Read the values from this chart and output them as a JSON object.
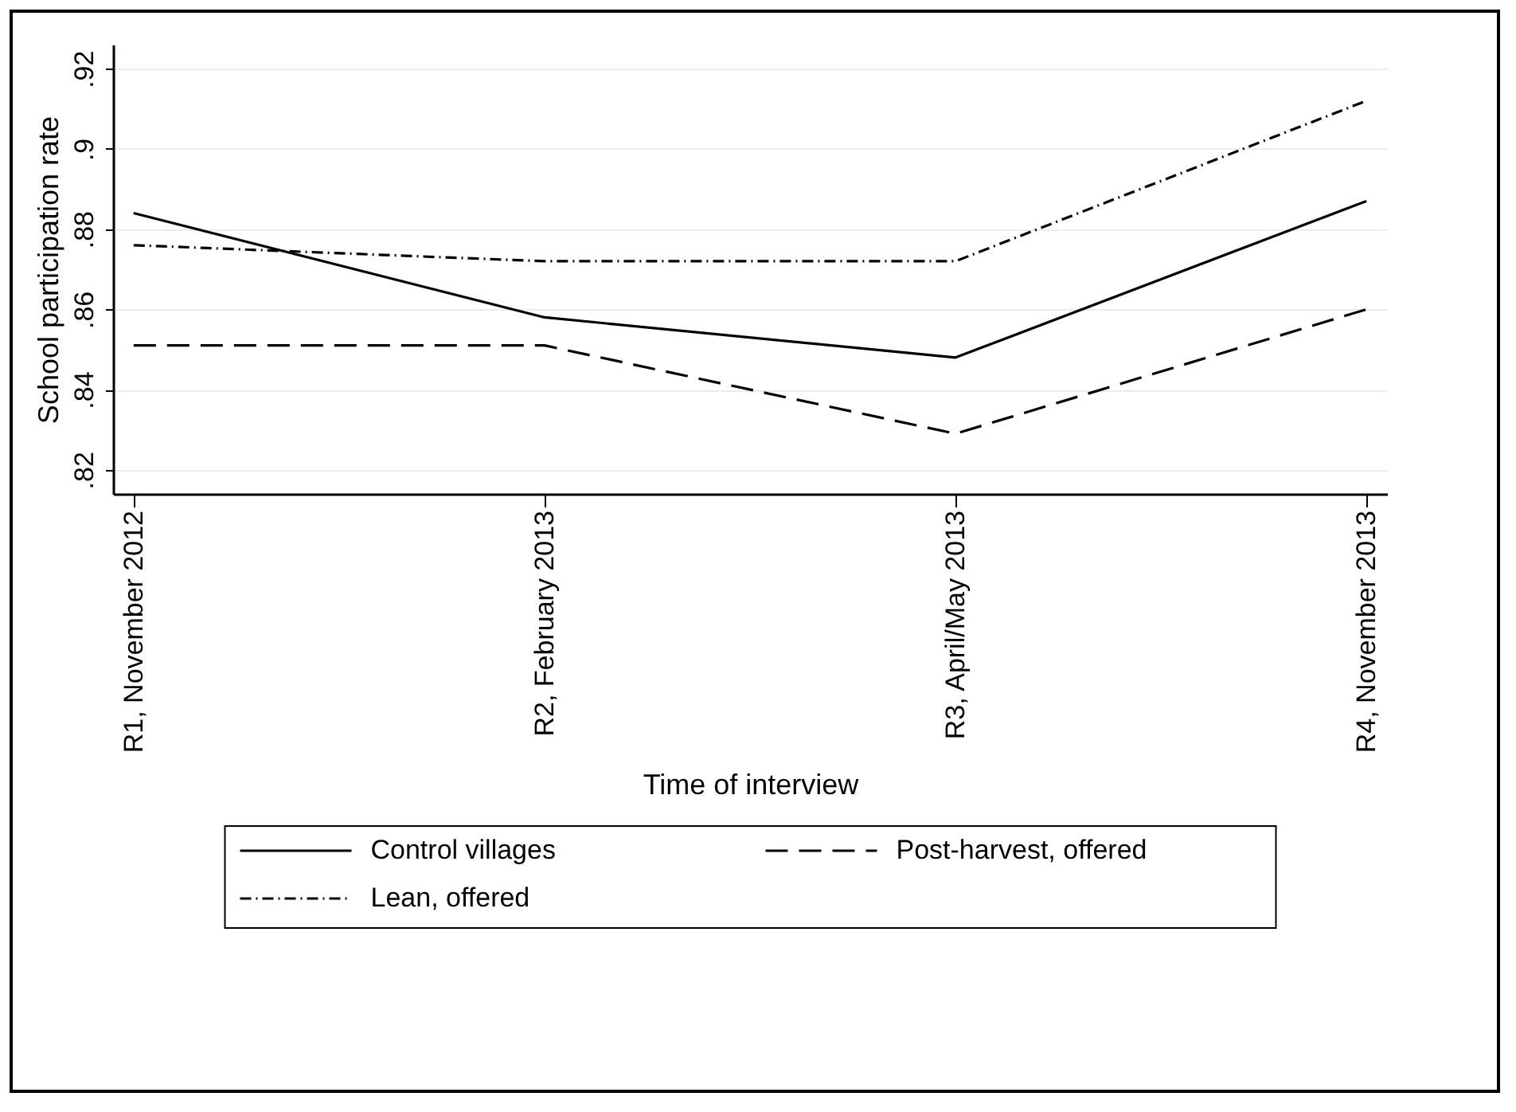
{
  "chart_data": {
    "type": "line",
    "xlabel": "Time of interview",
    "ylabel": "School participation rate",
    "categories": [
      "R1, November 2012",
      "R2, February 2013",
      "R3, April/May 2013",
      "R4, November 2013"
    ],
    "series": [
      {
        "name": "Control villages",
        "color": "#000000",
        "line_style": "solid",
        "values": [
          0.884,
          0.858,
          0.848,
          0.887
        ]
      },
      {
        "name": "Post-harvest, offered",
        "color": "#000000",
        "line_style": "dashed",
        "values": [
          0.851,
          0.851,
          0.829,
          0.86
        ]
      },
      {
        "name": "Lean, offered",
        "color": "#000000",
        "line_style": "dashdot",
        "values": [
          0.876,
          0.872,
          0.872,
          0.912
        ]
      }
    ],
    "ylim": [
      0.814,
      0.926
    ],
    "yticks": [
      {
        "value": 0.82,
        "label": ".82"
      },
      {
        "value": 0.84,
        "label": ".84"
      },
      {
        "value": 0.86,
        "label": ".86"
      },
      {
        "value": 0.88,
        "label": ".88"
      },
      {
        "value": 0.9,
        "label": ".9"
      },
      {
        "value": 0.92,
        "label": ".92"
      }
    ],
    "grid": "y",
    "legend": "bottom",
    "marker": "none"
  }
}
